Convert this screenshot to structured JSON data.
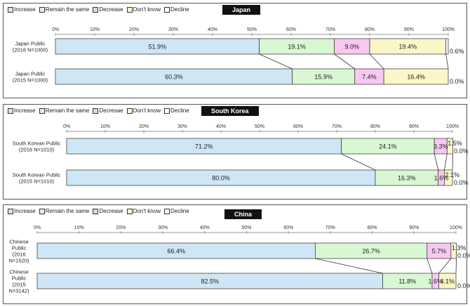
{
  "legend": [
    {
      "key": "increase",
      "label": "Increase",
      "color": "#cfe6f5"
    },
    {
      "key": "same",
      "label": "Remain the same",
      "color": "#d9f7d3"
    },
    {
      "key": "decrease",
      "label": "Decrease",
      "color": "#f7c8f2"
    },
    {
      "key": "dontknow",
      "label": "Don't know",
      "color": "#fbf6c8"
    },
    {
      "key": "decline",
      "label": "Decline",
      "color": "#ffffff"
    }
  ],
  "chart_data": [
    {
      "type": "bar",
      "orientation": "horizontal-stacked-100",
      "title": "Japan",
      "legend_labels": [
        "Increase",
        "Remain the same",
        "Decrease",
        "Don't know",
        "Decline"
      ],
      "axis": {
        "ticks": [
          "0%",
          "10%",
          "20%",
          "30%",
          "40%",
          "50%",
          "60%",
          "70%",
          "80%",
          "90%",
          "100%"
        ],
        "range": [
          0,
          100
        ]
      },
      "bars": [
        {
          "label_lines": [
            "Japan Public",
            "(2016  N=1000)"
          ],
          "values": [
            51.9,
            19.1,
            9.0,
            19.4,
            0.6
          ],
          "value_labels": [
            "51.9%",
            "19.1%",
            "9.0%",
            "19.4%",
            "0.6%"
          ]
        },
        {
          "label_lines": [
            "Japan Public",
            "(2015  N=1000)"
          ],
          "values": [
            60.3,
            15.9,
            7.4,
            16.4,
            0.0
          ],
          "value_labels": [
            "60.3%",
            "15.9%",
            "7.4%",
            "16.4%",
            "0.0%"
          ]
        }
      ]
    },
    {
      "type": "bar",
      "orientation": "horizontal-stacked-100",
      "title": "South Korea",
      "legend_labels": [
        "Increase",
        "Remain the same",
        "Decresae",
        "Don't know",
        "Decline"
      ],
      "axis": {
        "ticks": [
          "0%",
          "10%",
          "20%",
          "30%",
          "40%",
          "50%",
          "60%",
          "70%",
          "80%",
          "90%",
          "100%"
        ],
        "range": [
          0,
          100
        ]
      },
      "bars": [
        {
          "label_lines": [
            "South Korean Public",
            "(2016  N=1010)"
          ],
          "values": [
            71.2,
            24.1,
            3.3,
            1.5,
            0.0
          ],
          "value_labels": [
            "71.2%",
            "24.1%",
            "3.3%",
            "1.5%",
            "0.0%"
          ]
        },
        {
          "label_lines": [
            "South Korean Public",
            "(2015  N=1010)"
          ],
          "values": [
            80.0,
            16.3,
            1.6,
            2.1,
            0.0
          ],
          "value_labels": [
            "80.0%",
            "16.3%",
            "1.6%",
            "2.1%",
            "0.0%"
          ]
        }
      ]
    },
    {
      "type": "bar",
      "orientation": "horizontal-stacked-100",
      "title": "China",
      "legend_labels": [
        "Increase",
        "Remain the same",
        "Decrease",
        "Don't know",
        "Decline"
      ],
      "axis": {
        "ticks": [
          "0%",
          "10%",
          "20%",
          "30%",
          "40%",
          "50%",
          "60%",
          "70%",
          "80%",
          "90%",
          "100%"
        ],
        "range": [
          0,
          100
        ]
      },
      "bars": [
        {
          "label_lines": [
            "Chinese",
            "Public",
            "(2016",
            "N=1520)"
          ],
          "values": [
            66.4,
            26.7,
            5.7,
            1.3,
            0.0
          ],
          "value_labels": [
            "66.4%",
            "26.7%",
            "5.7%",
            "1.3%",
            "0.0%"
          ]
        },
        {
          "label_lines": [
            "Chinese",
            "Public",
            "(2015",
            "N=3142)"
          ],
          "values": [
            82.5,
            11.8,
            1.6,
            4.1,
            0.0
          ],
          "value_labels": [
            "82.5%",
            "11.8%",
            "1.6%",
            "4.1%",
            "0.0%"
          ]
        }
      ]
    }
  ]
}
